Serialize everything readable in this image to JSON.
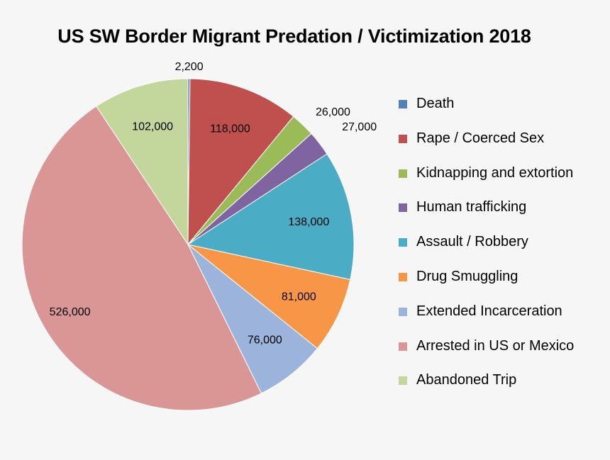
{
  "chart_data": {
    "type": "pie",
    "title": "US SW Border Migrant Predation / Victimization 2018",
    "start_angle_deg": 0,
    "direction": "clockwise",
    "legend_position": "right",
    "slices": [
      {
        "label": "Death",
        "value": 2200,
        "value_label": "2,200",
        "color": "#4f81bd",
        "label_position": "outside"
      },
      {
        "label": "Rape / Coerced Sex",
        "value": 118000,
        "value_label": "118,000",
        "color": "#c0504d",
        "label_position": "inside"
      },
      {
        "label": "Kidnapping and extortion",
        "value": 26000,
        "value_label": "26,000",
        "color": "#9bbb59",
        "label_position": "outside"
      },
      {
        "label": "Human trafficking",
        "value": 27000,
        "value_label": "27,000",
        "color": "#8064a2",
        "label_position": "outside"
      },
      {
        "label": "Assault / Robbery",
        "value": 138000,
        "value_label": "138,000",
        "color": "#4bacc6",
        "label_position": "inside"
      },
      {
        "label": "Drug Smuggling",
        "value": 81000,
        "value_label": "81,000",
        "color": "#f79646",
        "label_position": "inside"
      },
      {
        "label": "Extended Incarceration",
        "value": 76000,
        "value_label": "76,000",
        "color": "#9cb3dc",
        "label_position": "inside"
      },
      {
        "label": "Arrested in US or Mexico",
        "value": 526000,
        "value_label": "526,000",
        "color": "#d99694",
        "label_position": "inside"
      },
      {
        "label": "Abandoned Trip",
        "value": 102000,
        "value_label": "102,000",
        "color": "#c3d69b",
        "label_position": "inside"
      }
    ]
  }
}
